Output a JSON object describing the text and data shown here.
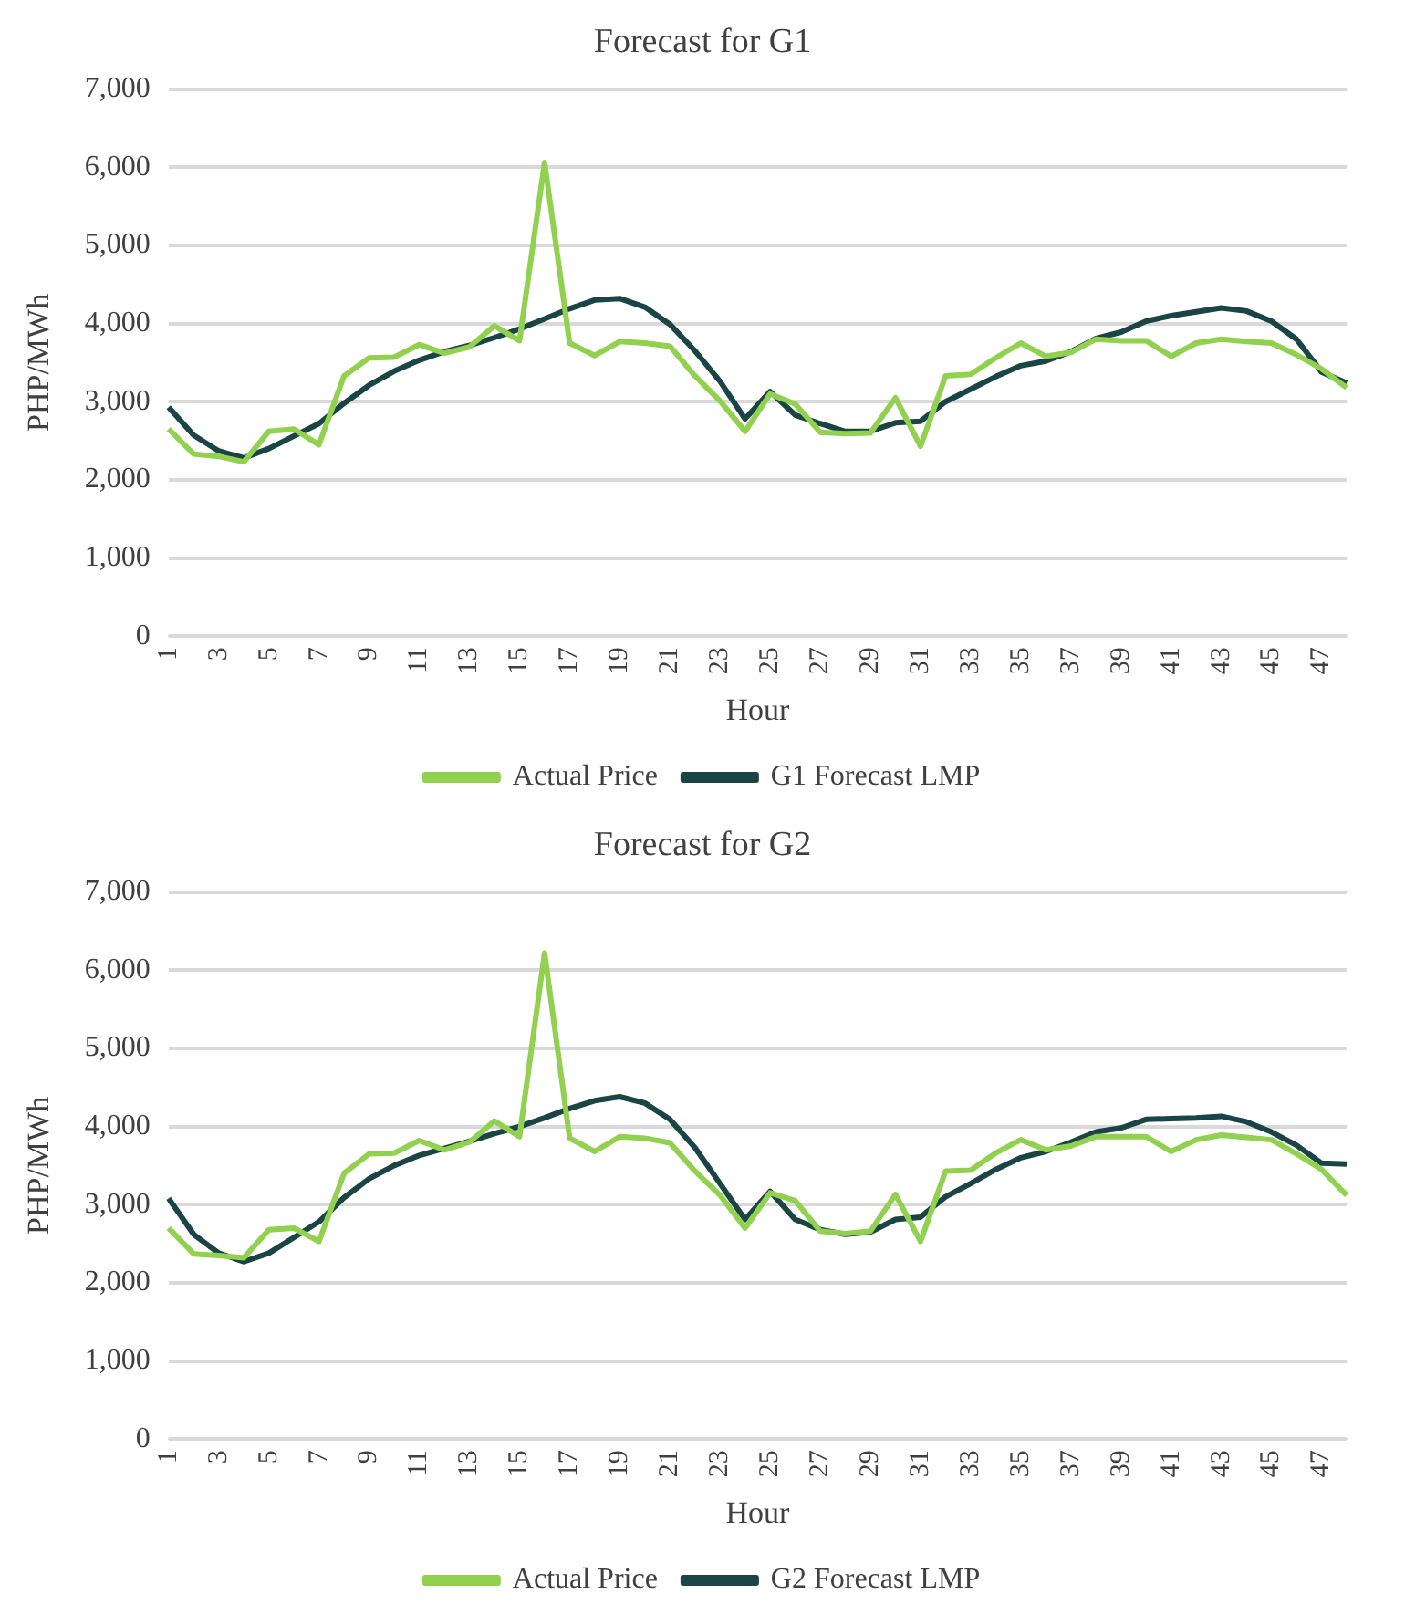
{
  "chart_data": [
    {
      "type": "line",
      "title": "Forecast for G1",
      "xlabel": "Hour",
      "ylabel": "PHP/MWh",
      "categories": [
        "1",
        null,
        "3",
        null,
        "5",
        null,
        "7",
        null,
        "9",
        null,
        "11",
        null,
        "13",
        null,
        "15",
        null,
        "17",
        null,
        "19",
        null,
        "21",
        null,
        "23",
        null,
        "25",
        null,
        "27",
        null,
        "29",
        null,
        "31",
        null,
        "33",
        null,
        "35",
        null,
        "37",
        null,
        "39",
        null,
        "41",
        null,
        "43",
        null,
        "45",
        null,
        "47",
        null
      ],
      "series": [
        {
          "name": "Actual Price",
          "color": "#92d050",
          "values": [
            2650,
            2330,
            2300,
            2230,
            2620,
            2650,
            2450,
            3330,
            3560,
            3570,
            3730,
            3620,
            3700,
            3970,
            3780,
            6060,
            3750,
            3590,
            3770,
            3750,
            3710,
            3330,
            3010,
            2620,
            3100,
            2970,
            2610,
            2590,
            2600,
            3050,
            2430,
            3330,
            3350,
            3560,
            3750,
            3580,
            3630,
            3800,
            3780,
            3780,
            3580,
            3750,
            3800,
            3770,
            3750,
            3600,
            3420,
            3180
          ]
        },
        {
          "name": "G1 Forecast LMP",
          "color": "#1b4444",
          "values": [
            2930,
            2570,
            2370,
            2280,
            2400,
            2560,
            2720,
            2980,
            3210,
            3390,
            3530,
            3640,
            3720,
            3820,
            3930,
            4060,
            4190,
            4300,
            4320,
            4210,
            3990,
            3650,
            3260,
            2780,
            3130,
            2830,
            2720,
            2620,
            2620,
            2730,
            2750,
            3000,
            3160,
            3320,
            3460,
            3520,
            3640,
            3810,
            3890,
            4030,
            4100,
            4150,
            4200,
            4160,
            4030,
            3800,
            3380,
            3240
          ]
        }
      ],
      "ylim": [
        0,
        7000
      ],
      "yticks": [
        0,
        {
          "value": 1000,
          "label": "1,000"
        },
        {
          "value": 2000,
          "label": "2,000"
        },
        {
          "value": 3000,
          "label": "3,000"
        },
        {
          "value": 4000,
          "label": "4,000"
        },
        {
          "value": 5000,
          "label": "5,000"
        },
        {
          "value": 6000,
          "label": "6,000"
        },
        {
          "value": 7000,
          "label": "7,000"
        }
      ],
      "grid": "y",
      "legend": "bottom",
      "marker": "none",
      "line_style": "solid"
    },
    {
      "type": "line",
      "title": "Forecast for G2",
      "xlabel": "Hour",
      "ylabel": "PHP/MWh",
      "categories": [
        "1",
        null,
        "3",
        null,
        "5",
        null,
        "7",
        null,
        "9",
        null,
        "11",
        null,
        "13",
        null,
        "15",
        null,
        "17",
        null,
        "19",
        null,
        "21",
        null,
        "23",
        null,
        "25",
        null,
        "27",
        null,
        "29",
        null,
        "31",
        null,
        "33",
        null,
        "35",
        null,
        "37",
        null,
        "39",
        null,
        "41",
        null,
        "43",
        null,
        "45",
        null,
        "47",
        null
      ],
      "series": [
        {
          "name": "Actual Price",
          "color": "#92d050",
          "values": [
            2700,
            2370,
            2350,
            2320,
            2680,
            2700,
            2530,
            3400,
            3650,
            3660,
            3820,
            3700,
            3800,
            4070,
            3870,
            6220,
            3850,
            3680,
            3870,
            3850,
            3790,
            3430,
            3120,
            2700,
            3150,
            3050,
            2660,
            2630,
            2660,
            3130,
            2530,
            3430,
            3440,
            3660,
            3830,
            3700,
            3750,
            3870,
            3870,
            3870,
            3680,
            3830,
            3890,
            3860,
            3830,
            3650,
            3450,
            3120
          ]
        },
        {
          "name": "G2 Forecast LMP",
          "color": "#1b4444",
          "values": [
            3080,
            2620,
            2380,
            2270,
            2380,
            2580,
            2780,
            3090,
            3330,
            3500,
            3630,
            3720,
            3810,
            3910,
            4000,
            4110,
            4230,
            4330,
            4380,
            4300,
            4090,
            3730,
            3270,
            2810,
            3170,
            2810,
            2680,
            2620,
            2650,
            2810,
            2840,
            3100,
            3270,
            3450,
            3600,
            3680,
            3800,
            3930,
            3980,
            4090,
            4100,
            4110,
            4130,
            4060,
            3930,
            3760,
            3530,
            3520
          ]
        }
      ],
      "ylim": [
        0,
        7000
      ],
      "yticks": [
        0,
        {
          "value": 1000,
          "label": "1,000"
        },
        {
          "value": 2000,
          "label": "2,000"
        },
        {
          "value": 3000,
          "label": "3,000"
        },
        {
          "value": 4000,
          "label": "4,000"
        },
        {
          "value": 5000,
          "label": "5,000"
        },
        {
          "value": 6000,
          "label": "6,000"
        },
        {
          "value": 7000,
          "label": "7,000"
        }
      ],
      "grid": "y",
      "legend": "bottom",
      "marker": "none",
      "line_style": "solid"
    }
  ]
}
